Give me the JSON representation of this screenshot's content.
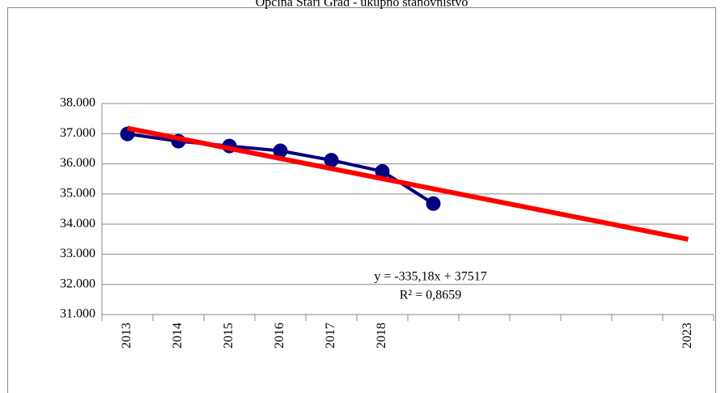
{
  "chart_data": {
    "type": "line",
    "title": "Općina Stari Grad - ukupno stanovništvo",
    "categories": [
      "2013",
      "2014",
      "2015",
      "2016",
      "2017",
      "2018",
      null,
      null,
      null,
      null,
      null,
      "2023"
    ],
    "series": [
      {
        "color": "#000080",
        "values": [
          36990,
          36750,
          36590,
          36430,
          36120,
          35750,
          34680,
          null,
          null,
          null,
          null,
          null
        ]
      }
    ],
    "ylim": [
      31000,
      38000
    ],
    "yticks": [
      {
        "value": 31000,
        "label": "31.000"
      },
      {
        "value": 32000,
        "label": "32.000"
      },
      {
        "value": 33000,
        "label": "33.000"
      },
      {
        "value": 34000,
        "label": "34.000"
      },
      {
        "value": 35000,
        "label": "35.000"
      },
      {
        "value": 36000,
        "label": "36.000"
      },
      {
        "value": 37000,
        "label": "37.000"
      },
      {
        "value": 38000,
        "label": "38.000"
      }
    ],
    "grid": true,
    "trend": {
      "slope": -335.18,
      "intercept": 37517,
      "color": "#ff0000",
      "label": "y = -335,18x + 37517",
      "r2_label": "R² = 0,8659"
    }
  }
}
